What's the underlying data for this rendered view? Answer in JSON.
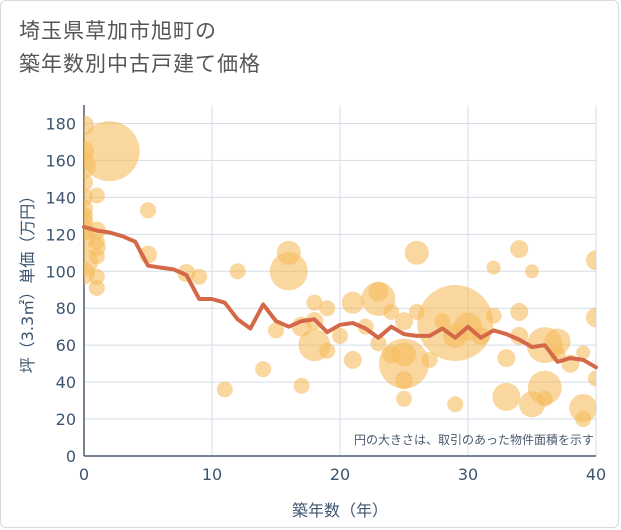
{
  "title_lines": [
    "埼玉県草加市旭町の",
    "築年数別中古戸建て価格"
  ],
  "chart_data": {
    "type": "scatter",
    "xlabel": "築年数（年）",
    "ylabel": "坪（3.3㎡）単価（万円）",
    "xlim": [
      0,
      40
    ],
    "ylim": [
      0,
      190
    ],
    "xticks": [
      0,
      10,
      20,
      30,
      40
    ],
    "yticks": [
      0,
      20,
      40,
      60,
      80,
      100,
      120,
      140,
      160,
      180
    ],
    "grid": true,
    "annotation": "円の大きさは、取引のあった物件面積を示す",
    "colors": {
      "bubble": "#f5bd5e",
      "line": "#d4694a",
      "grid": "#d5dde6",
      "axis_text": "#3d5570"
    },
    "series": [
      {
        "kind": "bubble",
        "points": [
          {
            "x": 0,
            "y": 179,
            "size": 10
          },
          {
            "x": 0,
            "y": 165,
            "size": 10
          },
          {
            "x": 0,
            "y": 157,
            "size": 12
          },
          {
            "x": 0,
            "y": 148,
            "size": 9
          },
          {
            "x": 0,
            "y": 140,
            "size": 9
          },
          {
            "x": 0,
            "y": 134,
            "size": 9
          },
          {
            "x": 0,
            "y": 130,
            "size": 9
          },
          {
            "x": 0,
            "y": 127,
            "size": 9
          },
          {
            "x": 0,
            "y": 122,
            "size": 10
          },
          {
            "x": 0,
            "y": 118,
            "size": 11
          },
          {
            "x": 0,
            "y": 105,
            "size": 14
          },
          {
            "x": 0,
            "y": 99,
            "size": 11
          },
          {
            "x": 1,
            "y": 141,
            "size": 8
          },
          {
            "x": 1,
            "y": 122,
            "size": 9
          },
          {
            "x": 1,
            "y": 116,
            "size": 8
          },
          {
            "x": 1,
            "y": 113,
            "size": 9
          },
          {
            "x": 1,
            "y": 108,
            "size": 8
          },
          {
            "x": 1,
            "y": 97,
            "size": 8
          },
          {
            "x": 1,
            "y": 91,
            "size": 8
          },
          {
            "x": 2,
            "y": 165,
            "size": 30
          },
          {
            "x": 5,
            "y": 133,
            "size": 8
          },
          {
            "x": 5,
            "y": 109,
            "size": 9
          },
          {
            "x": 8,
            "y": 99,
            "size": 9
          },
          {
            "x": 9,
            "y": 97,
            "size": 8
          },
          {
            "x": 11,
            "y": 36,
            "size": 8
          },
          {
            "x": 12,
            "y": 100,
            "size": 8
          },
          {
            "x": 14,
            "y": 47,
            "size": 8
          },
          {
            "x": 15,
            "y": 68,
            "size": 8
          },
          {
            "x": 16,
            "y": 110,
            "size": 12
          },
          {
            "x": 16,
            "y": 100,
            "size": 19
          },
          {
            "x": 17,
            "y": 70,
            "size": 10
          },
          {
            "x": 17,
            "y": 38,
            "size": 8
          },
          {
            "x": 18,
            "y": 83,
            "size": 8
          },
          {
            "x": 18,
            "y": 73,
            "size": 9
          },
          {
            "x": 18,
            "y": 60,
            "size": 16
          },
          {
            "x": 19,
            "y": 80,
            "size": 8
          },
          {
            "x": 19,
            "y": 57,
            "size": 8
          },
          {
            "x": 20,
            "y": 65,
            "size": 8
          },
          {
            "x": 21,
            "y": 83,
            "size": 11
          },
          {
            "x": 21,
            "y": 52,
            "size": 9
          },
          {
            "x": 22,
            "y": 70,
            "size": 8
          },
          {
            "x": 23,
            "y": 89,
            "size": 10
          },
          {
            "x": 23,
            "y": 85,
            "size": 17
          },
          {
            "x": 23,
            "y": 61,
            "size": 8
          },
          {
            "x": 24,
            "y": 78,
            "size": 8
          },
          {
            "x": 24,
            "y": 55,
            "size": 9
          },
          {
            "x": 25,
            "y": 73,
            "size": 9
          },
          {
            "x": 25,
            "y": 55,
            "size": 12
          },
          {
            "x": 25,
            "y": 50,
            "size": 25
          },
          {
            "x": 25,
            "y": 41,
            "size": 9
          },
          {
            "x": 25,
            "y": 31,
            "size": 8
          },
          {
            "x": 26,
            "y": 110,
            "size": 12
          },
          {
            "x": 26,
            "y": 78,
            "size": 8
          },
          {
            "x": 27,
            "y": 52,
            "size": 8
          },
          {
            "x": 28,
            "y": 73,
            "size": 8
          },
          {
            "x": 29,
            "y": 72,
            "size": 38
          },
          {
            "x": 29,
            "y": 65,
            "size": 12
          },
          {
            "x": 29,
            "y": 28,
            "size": 8
          },
          {
            "x": 30,
            "y": 70,
            "size": 14
          },
          {
            "x": 31,
            "y": 65,
            "size": 9
          },
          {
            "x": 32,
            "y": 102,
            "size": 7
          },
          {
            "x": 32,
            "y": 76,
            "size": 8
          },
          {
            "x": 33,
            "y": 53,
            "size": 9
          },
          {
            "x": 33,
            "y": 32,
            "size": 14
          },
          {
            "x": 34,
            "y": 112,
            "size": 9
          },
          {
            "x": 34,
            "y": 78,
            "size": 9
          },
          {
            "x": 34,
            "y": 65,
            "size": 9
          },
          {
            "x": 35,
            "y": 100,
            "size": 7
          },
          {
            "x": 35,
            "y": 28,
            "size": 13
          },
          {
            "x": 36,
            "y": 60,
            "size": 18
          },
          {
            "x": 36,
            "y": 37,
            "size": 17
          },
          {
            "x": 36,
            "y": 31,
            "size": 8
          },
          {
            "x": 37,
            "y": 62,
            "size": 13
          },
          {
            "x": 37,
            "y": 55,
            "size": 8
          },
          {
            "x": 38,
            "y": 50,
            "size": 9
          },
          {
            "x": 39,
            "y": 56,
            "size": 7
          },
          {
            "x": 39,
            "y": 26,
            "size": 14
          },
          {
            "x": 39,
            "y": 20,
            "size": 8
          },
          {
            "x": 40,
            "y": 106,
            "size": 10
          },
          {
            "x": 40,
            "y": 75,
            "size": 10
          },
          {
            "x": 40,
            "y": 42,
            "size": 8
          }
        ]
      },
      {
        "kind": "line",
        "x": [
          0,
          1,
          2,
          3,
          4,
          5,
          6,
          7,
          8,
          9,
          10,
          11,
          12,
          13,
          14,
          15,
          16,
          17,
          18,
          19,
          20,
          21,
          22,
          23,
          24,
          25,
          26,
          27,
          28,
          29,
          30,
          31,
          32,
          33,
          34,
          35,
          36,
          37,
          38,
          39,
          40
        ],
        "y": [
          124,
          122,
          121,
          119,
          116,
          103,
          102,
          101,
          98,
          85,
          85,
          83,
          74,
          69,
          82,
          73,
          70,
          73,
          74,
          67,
          71,
          72,
          69,
          64,
          70,
          66,
          65,
          65,
          69,
          64,
          70,
          64,
          68,
          66,
          63,
          59,
          60,
          51,
          53,
          52,
          48
        ]
      }
    ]
  }
}
